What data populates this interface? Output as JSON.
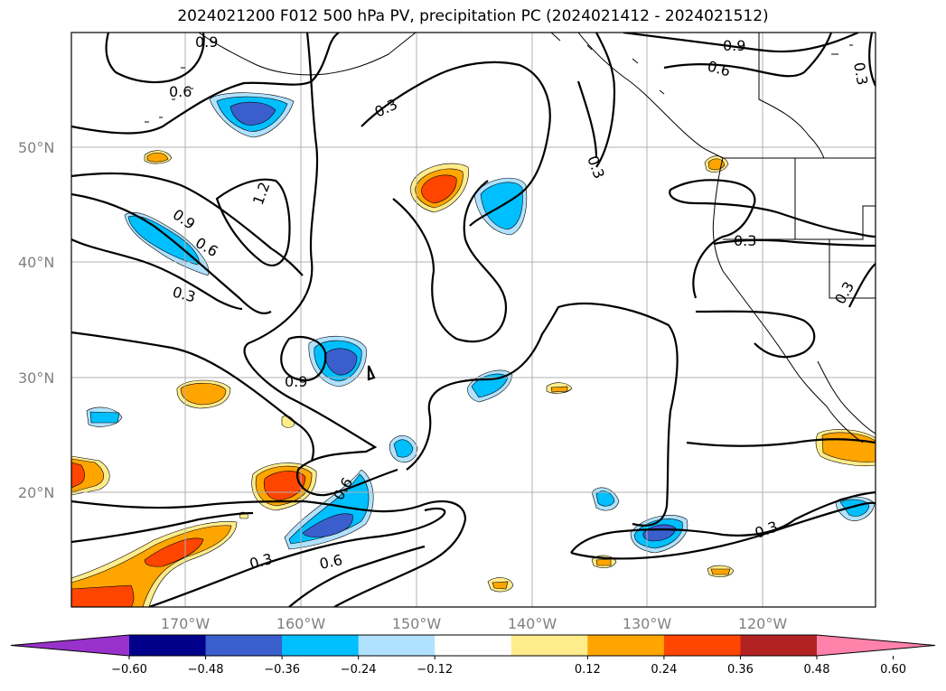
{
  "title": "2024021200 F012 500 hPa PV, precipitation PC (2024021412 - 2024021512)",
  "lat_labels": [
    "50°N",
    "40°N",
    "30°N",
    "20°N"
  ],
  "lon_labels": [
    "170°W",
    "160°W",
    "150°W",
    "140°W",
    "130°W",
    "120°W"
  ],
  "contour_labels": [
    "0.9",
    "0.6",
    "0.3",
    "1.2",
    "0.9",
    "0.6",
    "0.3",
    "0.3",
    "0.9",
    "0.6",
    "0.3",
    "0.6",
    "0.3",
    "0.3",
    "0.9",
    "0.6",
    "0.3",
    "0.3"
  ],
  "colorbar": {
    "ticks": [
      "−0.60",
      "−0.48",
      "−0.36",
      "−0.24",
      "−0.12",
      "0.12",
      "0.24",
      "0.36",
      "0.48",
      "0.60"
    ],
    "colors": [
      "#9932cc",
      "#00008b",
      "#3a5fcd",
      "#00bfff",
      "#b0e2ff",
      "#ffffff",
      "#ffec8b",
      "#ffa500",
      "#ff4500",
      "#b22222",
      "#ff82ab"
    ]
  }
}
